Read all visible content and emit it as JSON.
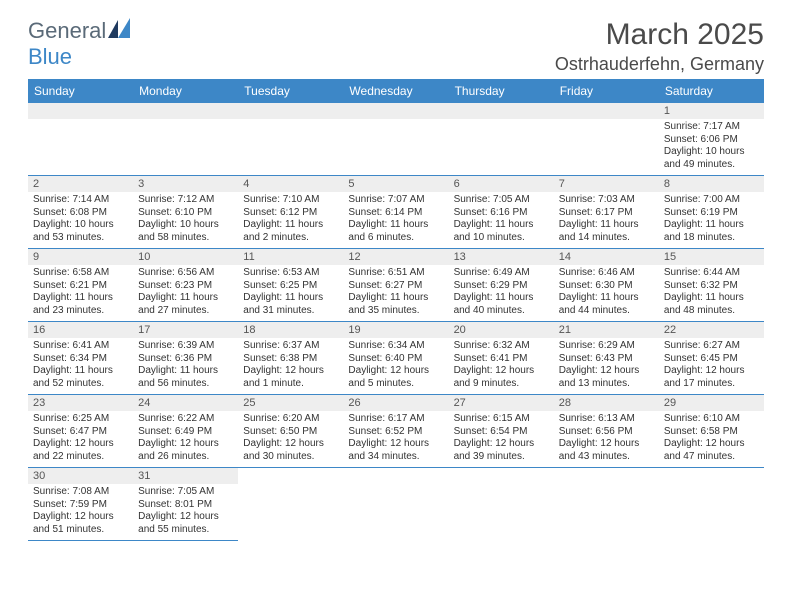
{
  "logo": {
    "text1": "General",
    "text2": "Blue",
    "color_general": "#5a6a78",
    "color_blue": "#3d87c7"
  },
  "title": "March 2025",
  "location": "Ostrhauderfehn, Germany",
  "header_bg": "#3d87c7",
  "daynum_bg": "#eeeeee",
  "columns": [
    "Sunday",
    "Monday",
    "Tuesday",
    "Wednesday",
    "Thursday",
    "Friday",
    "Saturday"
  ],
  "weeks": [
    [
      null,
      null,
      null,
      null,
      null,
      null,
      {
        "n": "1",
        "sunrise": "7:17 AM",
        "sunset": "6:06 PM",
        "daylight": "10 hours and 49 minutes."
      }
    ],
    [
      {
        "n": "2",
        "sunrise": "7:14 AM",
        "sunset": "6:08 PM",
        "daylight": "10 hours and 53 minutes."
      },
      {
        "n": "3",
        "sunrise": "7:12 AM",
        "sunset": "6:10 PM",
        "daylight": "10 hours and 58 minutes."
      },
      {
        "n": "4",
        "sunrise": "7:10 AM",
        "sunset": "6:12 PM",
        "daylight": "11 hours and 2 minutes."
      },
      {
        "n": "5",
        "sunrise": "7:07 AM",
        "sunset": "6:14 PM",
        "daylight": "11 hours and 6 minutes."
      },
      {
        "n": "6",
        "sunrise": "7:05 AM",
        "sunset": "6:16 PM",
        "daylight": "11 hours and 10 minutes."
      },
      {
        "n": "7",
        "sunrise": "7:03 AM",
        "sunset": "6:17 PM",
        "daylight": "11 hours and 14 minutes."
      },
      {
        "n": "8",
        "sunrise": "7:00 AM",
        "sunset": "6:19 PM",
        "daylight": "11 hours and 18 minutes."
      }
    ],
    [
      {
        "n": "9",
        "sunrise": "6:58 AM",
        "sunset": "6:21 PM",
        "daylight": "11 hours and 23 minutes."
      },
      {
        "n": "10",
        "sunrise": "6:56 AM",
        "sunset": "6:23 PM",
        "daylight": "11 hours and 27 minutes."
      },
      {
        "n": "11",
        "sunrise": "6:53 AM",
        "sunset": "6:25 PM",
        "daylight": "11 hours and 31 minutes."
      },
      {
        "n": "12",
        "sunrise": "6:51 AM",
        "sunset": "6:27 PM",
        "daylight": "11 hours and 35 minutes."
      },
      {
        "n": "13",
        "sunrise": "6:49 AM",
        "sunset": "6:29 PM",
        "daylight": "11 hours and 40 minutes."
      },
      {
        "n": "14",
        "sunrise": "6:46 AM",
        "sunset": "6:30 PM",
        "daylight": "11 hours and 44 minutes."
      },
      {
        "n": "15",
        "sunrise": "6:44 AM",
        "sunset": "6:32 PM",
        "daylight": "11 hours and 48 minutes."
      }
    ],
    [
      {
        "n": "16",
        "sunrise": "6:41 AM",
        "sunset": "6:34 PM",
        "daylight": "11 hours and 52 minutes."
      },
      {
        "n": "17",
        "sunrise": "6:39 AM",
        "sunset": "6:36 PM",
        "daylight": "11 hours and 56 minutes."
      },
      {
        "n": "18",
        "sunrise": "6:37 AM",
        "sunset": "6:38 PM",
        "daylight": "12 hours and 1 minute."
      },
      {
        "n": "19",
        "sunrise": "6:34 AM",
        "sunset": "6:40 PM",
        "daylight": "12 hours and 5 minutes."
      },
      {
        "n": "20",
        "sunrise": "6:32 AM",
        "sunset": "6:41 PM",
        "daylight": "12 hours and 9 minutes."
      },
      {
        "n": "21",
        "sunrise": "6:29 AM",
        "sunset": "6:43 PM",
        "daylight": "12 hours and 13 minutes."
      },
      {
        "n": "22",
        "sunrise": "6:27 AM",
        "sunset": "6:45 PM",
        "daylight": "12 hours and 17 minutes."
      }
    ],
    [
      {
        "n": "23",
        "sunrise": "6:25 AM",
        "sunset": "6:47 PM",
        "daylight": "12 hours and 22 minutes."
      },
      {
        "n": "24",
        "sunrise": "6:22 AM",
        "sunset": "6:49 PM",
        "daylight": "12 hours and 26 minutes."
      },
      {
        "n": "25",
        "sunrise": "6:20 AM",
        "sunset": "6:50 PM",
        "daylight": "12 hours and 30 minutes."
      },
      {
        "n": "26",
        "sunrise": "6:17 AM",
        "sunset": "6:52 PM",
        "daylight": "12 hours and 34 minutes."
      },
      {
        "n": "27",
        "sunrise": "6:15 AM",
        "sunset": "6:54 PM",
        "daylight": "12 hours and 39 minutes."
      },
      {
        "n": "28",
        "sunrise": "6:13 AM",
        "sunset": "6:56 PM",
        "daylight": "12 hours and 43 minutes."
      },
      {
        "n": "29",
        "sunrise": "6:10 AM",
        "sunset": "6:58 PM",
        "daylight": "12 hours and 47 minutes."
      }
    ],
    [
      {
        "n": "30",
        "sunrise": "7:08 AM",
        "sunset": "7:59 PM",
        "daylight": "12 hours and 51 minutes."
      },
      {
        "n": "31",
        "sunrise": "7:05 AM",
        "sunset": "8:01 PM",
        "daylight": "12 hours and 55 minutes."
      },
      null,
      null,
      null,
      null,
      null
    ]
  ],
  "labels": {
    "sunrise": "Sunrise:",
    "sunset": "Sunset:",
    "daylight": "Daylight:"
  }
}
